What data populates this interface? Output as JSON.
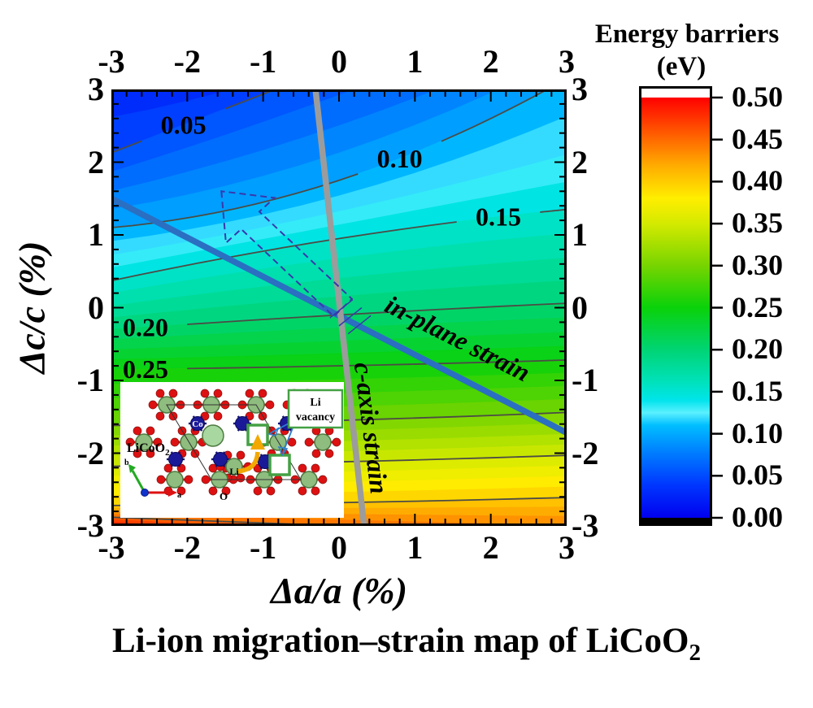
{
  "figure": {
    "caption": {
      "text": "Li-ion migration–strain map of LiCoO",
      "sub": "2"
    }
  },
  "chart_data": {
    "type": "heatmap",
    "title": "Li-ion migration–strain map of LiCoO2",
    "xlabel": "Δa/a (%)",
    "ylabel": "Δc/c (%)",
    "x_range": [
      -3,
      3
    ],
    "y_range": [
      -3,
      3
    ],
    "tick_values": [
      -3,
      -2,
      -1,
      0,
      1,
      2,
      3
    ],
    "x_tick_labels": [
      "-3",
      "-2",
      "-1",
      "0",
      "1",
      "2",
      "3"
    ],
    "y_tick_labels": [
      "3",
      "2",
      "1",
      "0",
      "-1",
      "-2",
      "-3"
    ],
    "minor_tick_step": 0.2,
    "grid": false,
    "colorbar": {
      "title1": "Energy barriers",
      "title2": "(eV)",
      "min": 0.0,
      "max": 0.5,
      "tick_labels": [
        "0.50",
        "0.45",
        "0.40",
        "0.35",
        "0.30",
        "0.25",
        "0.20",
        "0.15",
        "0.10",
        "0.05",
        "0.00"
      ],
      "tick_values": [
        0.5,
        0.45,
        0.4,
        0.35,
        0.3,
        0.25,
        0.2,
        0.15,
        0.1,
        0.05,
        0.0
      ],
      "above_max_color": "#ffffff",
      "below_min_color": "#000000"
    },
    "colormap_stops": [
      [
        0.0,
        [
          0,
          0,
          238
        ]
      ],
      [
        0.04,
        [
          0,
          56,
          255
        ]
      ],
      [
        0.08,
        [
          0,
          130,
          255
        ]
      ],
      [
        0.11,
        [
          0,
          190,
          255
        ]
      ],
      [
        0.125,
        [
          90,
          240,
          255
        ]
      ],
      [
        0.14,
        [
          0,
          228,
          235
        ]
      ],
      [
        0.16,
        [
          0,
          226,
          190
        ]
      ],
      [
        0.2,
        [
          0,
          212,
          116
        ]
      ],
      [
        0.25,
        [
          10,
          210,
          10
        ]
      ],
      [
        0.3,
        [
          119,
          212,
          0
        ]
      ],
      [
        0.35,
        [
          212,
          234,
          0
        ]
      ],
      [
        0.38,
        [
          255,
          238,
          0
        ]
      ],
      [
        0.42,
        [
          255,
          170,
          0
        ]
      ],
      [
        0.45,
        [
          255,
          106,
          0
        ]
      ],
      [
        0.5,
        [
          255,
          0,
          0
        ]
      ]
    ],
    "contours": [
      {
        "level": "0.05",
        "label_x": -2.05,
        "y": [
          2.13,
          3.34,
          4.56
        ]
      },
      {
        "level": "0.10",
        "label_x": 0.8,
        "y": [
          1.1,
          1.75,
          3.15
        ]
      },
      {
        "level": "0.15",
        "label_x": 2.1,
        "y": [
          0.37,
          0.95,
          1.35
        ]
      },
      {
        "level": "0.20",
        "label_x": -2.55,
        "y": [
          -0.3,
          -0.1,
          0.06
        ]
      },
      {
        "level": "0.25",
        "label_x": -2.55,
        "y": [
          -0.85,
          -0.8,
          -0.72
        ]
      },
      {
        "level": "0.30",
        "label_x": null,
        "y": [
          -1.62,
          -1.55,
          -1.44
        ]
      },
      {
        "level": "0.35",
        "label_x": null,
        "y": [
          -2.18,
          -2.12,
          -2.03
        ]
      },
      {
        "level": "0.40",
        "label_x": null,
        "y": [
          -2.72,
          -2.68,
          -2.61
        ]
      },
      {
        "level": "0.45",
        "label_x": null,
        "y": [
          -2.88,
          -3.0,
          -3.12
        ]
      }
    ],
    "fill_anchors": [
      [
        0.0,
        4.2,
        4.4,
        6.0
      ],
      [
        0.025,
        3.1,
        3.6,
        5.2
      ],
      [
        0.05,
        2.13,
        3.34,
        4.56
      ],
      [
        0.075,
        1.6,
        2.5,
        3.75
      ],
      [
        0.1,
        1.1,
        1.75,
        3.15
      ],
      [
        0.125,
        0.72,
        1.32,
        2.1
      ],
      [
        0.15,
        0.37,
        0.95,
        1.35
      ],
      [
        0.175,
        0.02,
        0.4,
        0.68
      ],
      [
        0.2,
        -0.3,
        -0.1,
        0.06
      ],
      [
        0.225,
        -0.58,
        -0.46,
        -0.34
      ],
      [
        0.25,
        -0.85,
        -0.8,
        -0.72
      ],
      [
        0.275,
        -1.25,
        -1.18,
        -1.08
      ],
      [
        0.3,
        -1.62,
        -1.55,
        -1.44
      ],
      [
        0.325,
        -1.9,
        -1.84,
        -1.74
      ],
      [
        0.35,
        -2.18,
        -2.12,
        -2.03
      ],
      [
        0.375,
        -2.45,
        -2.4,
        -2.32
      ],
      [
        0.4,
        -2.72,
        -2.68,
        -2.61
      ],
      [
        0.425,
        -2.8,
        -2.84,
        -2.87
      ],
      [
        0.45,
        -2.88,
        -3.0,
        -3.12
      ],
      [
        0.475,
        -2.95,
        -3.15,
        -3.35
      ],
      [
        0.5,
        -3.02,
        -3.3,
        -3.6
      ],
      [
        0.525,
        -3.1,
        -3.45,
        -3.8
      ]
    ],
    "fill_step": 0.0125,
    "lines": [
      {
        "name": "in-plane strain",
        "x1": -3,
        "y1": 1.5,
        "x2": 3,
        "y2": -1.72,
        "color": "#2a6fc2",
        "width": 7.5
      },
      {
        "name": "c-axis strain",
        "x1": -0.31,
        "y1": 3,
        "x2": 0.33,
        "y2": -3,
        "color": "#9c9c9c",
        "width": 7.5
      }
    ],
    "annotation_arrow": {
      "meaning": "migration-barrier-lowering direction",
      "color": "#3838ac",
      "points": [
        [
          -1.55,
          1.6
        ],
        [
          -1.49,
          0.89
        ],
        [
          -1.29,
          1.08
        ],
        [
          -0.07,
          -0.12
        ],
        [
          0.17,
          0.12
        ],
        [
          -1.05,
          1.32
        ],
        [
          -0.85,
          1.51
        ]
      ],
      "hatch": [
        [
          0.0,
          -0.25,
          0.3,
          0.0
        ],
        [
          -0.12,
          -0.14,
          0.18,
          0.11
        ],
        [
          0.12,
          -0.36,
          0.42,
          -0.11
        ]
      ]
    },
    "contour_line_color": "#4c4c45"
  },
  "inset": {
    "compound": {
      "text": "LiCoO",
      "sub": "2"
    },
    "atom_labels": {
      "co": "Co",
      "li": "Li",
      "o": "O"
    },
    "vacancy_label": {
      "line1": "Li",
      "line2": "vacancy"
    },
    "axes": {
      "a": "a",
      "b": "b"
    },
    "colors": {
      "li_atom": "#8fbc7f",
      "co_atom": "#1a1a99",
      "o_atom": "#dd1111",
      "vacancy_border": "#44a044",
      "migration_arrow": "#f2a800"
    }
  }
}
